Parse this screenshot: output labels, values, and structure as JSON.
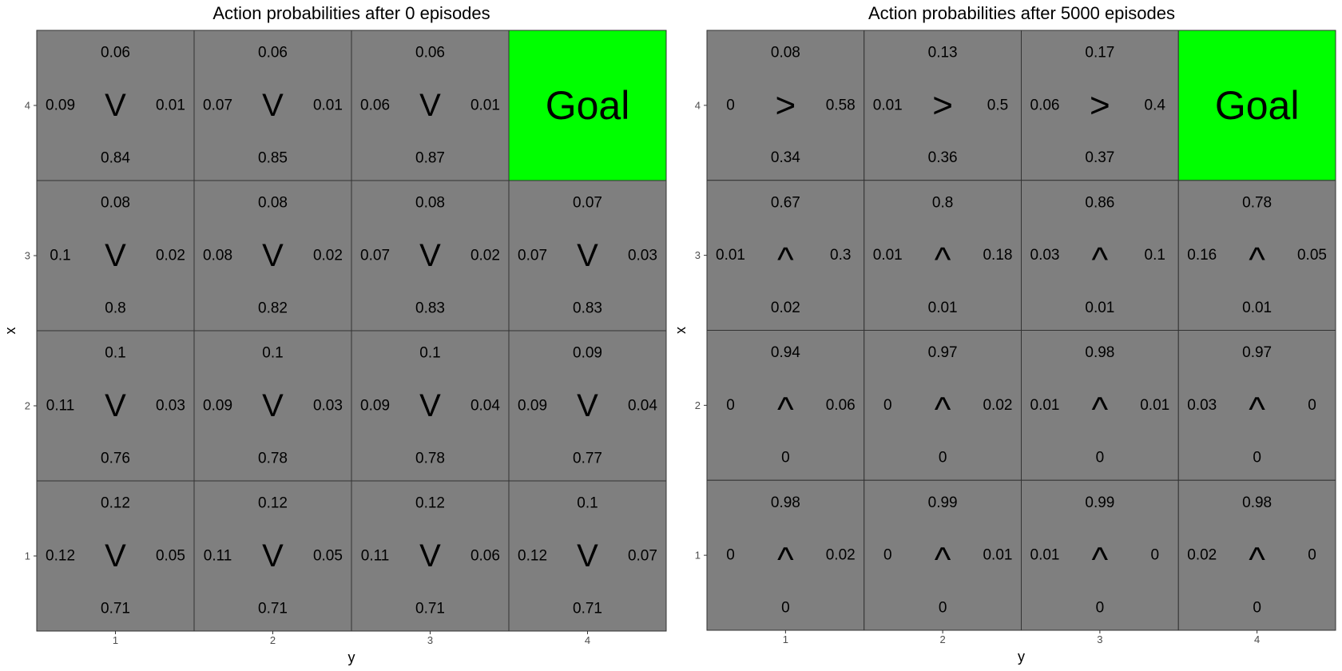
{
  "colors": {
    "panel_bg": "#ebebeb",
    "gridline": "#ffffff",
    "cell_fill": "#7f7f7f",
    "cell_border": "#333333",
    "goal_fill": "#00ff00",
    "text": "#000000",
    "axis_text": "#4d4d4d"
  },
  "chart_data": [
    {
      "type": "heatmap",
      "title": "Action probabilities after  0  episodes",
      "xlabel": "y",
      "ylabel": "x",
      "x_ticks": [
        "1",
        "2",
        "3",
        "4"
      ],
      "y_ticks": [
        "1",
        "2",
        "3",
        "4"
      ],
      "xlim": [
        0.5,
        4.5
      ],
      "ylim": [
        0.5,
        4.5
      ],
      "grid": true,
      "goal": {
        "x": 4,
        "y": 4,
        "label": "Goal"
      },
      "cells": [
        {
          "x": 4,
          "y": 1,
          "arrow": "V",
          "up": "0.06",
          "down": "0.84",
          "left": "0.09",
          "right": "0.01"
        },
        {
          "x": 4,
          "y": 2,
          "arrow": "V",
          "up": "0.06",
          "down": "0.85",
          "left": "0.07",
          "right": "0.01"
        },
        {
          "x": 4,
          "y": 3,
          "arrow": "V",
          "up": "0.06",
          "down": "0.87",
          "left": "0.06",
          "right": "0.01"
        },
        {
          "x": 3,
          "y": 1,
          "arrow": "V",
          "up": "0.08",
          "down": "0.8",
          "left": "0.1",
          "right": "0.02"
        },
        {
          "x": 3,
          "y": 2,
          "arrow": "V",
          "up": "0.08",
          "down": "0.82",
          "left": "0.08",
          "right": "0.02"
        },
        {
          "x": 3,
          "y": 3,
          "arrow": "V",
          "up": "0.08",
          "down": "0.83",
          "left": "0.07",
          "right": "0.02"
        },
        {
          "x": 3,
          "y": 4,
          "arrow": "V",
          "up": "0.07",
          "down": "0.83",
          "left": "0.07",
          "right": "0.03"
        },
        {
          "x": 2,
          "y": 1,
          "arrow": "V",
          "up": "0.1",
          "down": "0.76",
          "left": "0.11",
          "right": "0.03"
        },
        {
          "x": 2,
          "y": 2,
          "arrow": "V",
          "up": "0.1",
          "down": "0.78",
          "left": "0.09",
          "right": "0.03"
        },
        {
          "x": 2,
          "y": 3,
          "arrow": "V",
          "up": "0.1",
          "down": "0.78",
          "left": "0.09",
          "right": "0.04"
        },
        {
          "x": 2,
          "y": 4,
          "arrow": "V",
          "up": "0.09",
          "down": "0.77",
          "left": "0.09",
          "right": "0.04"
        },
        {
          "x": 1,
          "y": 1,
          "arrow": "V",
          "up": "0.12",
          "down": "0.71",
          "left": "0.12",
          "right": "0.05"
        },
        {
          "x": 1,
          "y": 2,
          "arrow": "V",
          "up": "0.12",
          "down": "0.71",
          "left": "0.11",
          "right": "0.05"
        },
        {
          "x": 1,
          "y": 3,
          "arrow": "V",
          "up": "0.12",
          "down": "0.71",
          "left": "0.11",
          "right": "0.06"
        },
        {
          "x": 1,
          "y": 4,
          "arrow": "V",
          "up": "0.1",
          "down": "0.71",
          "left": "0.12",
          "right": "0.07"
        }
      ]
    },
    {
      "type": "heatmap",
      "title": "Action probabilities after  5000  episodes",
      "xlabel": "y",
      "ylabel": "x",
      "x_ticks": [
        "1",
        "2",
        "3",
        "4"
      ],
      "y_ticks": [
        "1",
        "2",
        "3",
        "4"
      ],
      "xlim": [
        0.5,
        4.5
      ],
      "ylim": [
        0.5,
        4.5
      ],
      "grid": true,
      "goal": {
        "x": 4,
        "y": 4,
        "label": "Goal"
      },
      "cells": [
        {
          "x": 4,
          "y": 1,
          "arrow": ">",
          "up": "0.08",
          "down": "0.34",
          "left": "0",
          "right": "0.58"
        },
        {
          "x": 4,
          "y": 2,
          "arrow": ">",
          "up": "0.13",
          "down": "0.36",
          "left": "0.01",
          "right": "0.5"
        },
        {
          "x": 4,
          "y": 3,
          "arrow": ">",
          "up": "0.17",
          "down": "0.37",
          "left": "0.06",
          "right": "0.4"
        },
        {
          "x": 3,
          "y": 1,
          "arrow": "^",
          "up": "0.67",
          "down": "0.02",
          "left": "0.01",
          "right": "0.3"
        },
        {
          "x": 3,
          "y": 2,
          "arrow": "^",
          "up": "0.8",
          "down": "0.01",
          "left": "0.01",
          "right": "0.18"
        },
        {
          "x": 3,
          "y": 3,
          "arrow": "^",
          "up": "0.86",
          "down": "0.01",
          "left": "0.03",
          "right": "0.1"
        },
        {
          "x": 3,
          "y": 4,
          "arrow": "^",
          "up": "0.78",
          "down": "0.01",
          "left": "0.16",
          "right": "0.05"
        },
        {
          "x": 2,
          "y": 1,
          "arrow": "^",
          "up": "0.94",
          "down": "0",
          "left": "0",
          "right": "0.06"
        },
        {
          "x": 2,
          "y": 2,
          "arrow": "^",
          "up": "0.97",
          "down": "0",
          "left": "0",
          "right": "0.02"
        },
        {
          "x": 2,
          "y": 3,
          "arrow": "^",
          "up": "0.98",
          "down": "0",
          "left": "0.01",
          "right": "0.01"
        },
        {
          "x": 2,
          "y": 4,
          "arrow": "^",
          "up": "0.97",
          "down": "0",
          "left": "0.03",
          "right": "0"
        },
        {
          "x": 1,
          "y": 1,
          "arrow": "^",
          "up": "0.98",
          "down": "0",
          "left": "0",
          "right": "0.02"
        },
        {
          "x": 1,
          "y": 2,
          "arrow": "^",
          "up": "0.99",
          "down": "0",
          "left": "0",
          "right": "0.01"
        },
        {
          "x": 1,
          "y": 3,
          "arrow": "^",
          "up": "0.99",
          "down": "0",
          "left": "0.01",
          "right": "0"
        },
        {
          "x": 1,
          "y": 4,
          "arrow": "^",
          "up": "0.98",
          "down": "0",
          "left": "0.02",
          "right": "0"
        }
      ]
    }
  ]
}
